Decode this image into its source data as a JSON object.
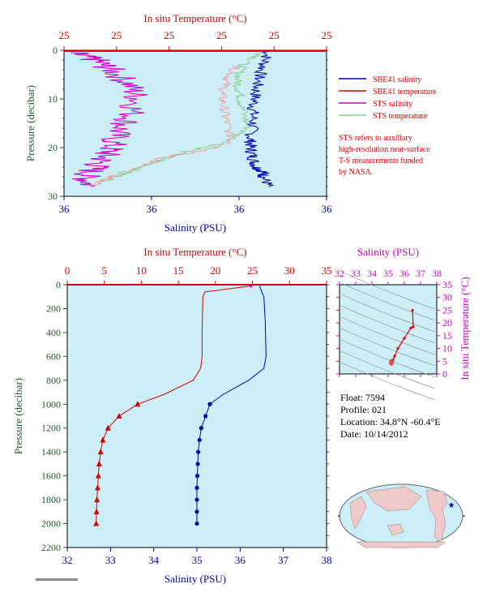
{
  "colors": {
    "plot_bg": "#cdeef7",
    "red": "#d40000",
    "green": "#1e5a28",
    "blue": "#0000b4",
    "magenta": "#cc00cc",
    "light_red": "#f0a0a0",
    "light_green": "#8ccf8c"
  },
  "top_panel": {
    "title": "In situ Temperature (°C)",
    "temp_ticks": [
      "25",
      "25",
      "25",
      "25",
      "25",
      "25"
    ],
    "pressure_label": "Pressure (decibar)",
    "pressure_ticks": [
      "0",
      "10",
      "20",
      "30"
    ],
    "salinity_ticks": [
      "36",
      "36",
      "36",
      "36"
    ],
    "salinity_label": "Salinity (PSU)",
    "legend": [
      {
        "label": "SBE41 salinity",
        "color": "#0000b4"
      },
      {
        "label": "SBE41 temperature",
        "color": "#d40000"
      },
      {
        "label": "STS salinity",
        "color": "#cc00cc"
      },
      {
        "label": "STS temperature",
        "color": "#8ccf8c"
      }
    ],
    "note": [
      "STS refers to auxiliary",
      "high-resolution near-surface",
      "T-S measurements funded",
      "by NASA."
    ]
  },
  "main_panel": {
    "title": "In situ Temperature (°C)",
    "temp_ticks": [
      "0",
      "5",
      "10",
      "15",
      "20",
      "25",
      "30",
      "35"
    ],
    "pressure_label": "Pressure (decibar)",
    "pressure_ticks": [
      "0",
      "200",
      "400",
      "600",
      "800",
      "1000",
      "1200",
      "1400",
      "1600",
      "1800",
      "2000",
      "2200"
    ],
    "salinity_ticks": [
      "32",
      "33",
      "34",
      "35",
      "36",
      "37",
      "38"
    ],
    "salinity_label": "Salinity (PSU)"
  },
  "ts_panel": {
    "title": "Salinity (PSU)",
    "salinity_ticks": [
      "32",
      "33",
      "34",
      "35",
      "36",
      "37",
      "38"
    ],
    "temp_ticks": [
      "0",
      "5",
      "10",
      "15",
      "20",
      "25",
      "30",
      "35"
    ],
    "temp_label": "In situ Temperature (°C)"
  },
  "info": {
    "float": "Float:  7594",
    "profile": "Profile:  021",
    "location": "Location:  34.8°N  -60.4°E",
    "date": "Date:  10/14/2012"
  },
  "chart_data": [
    {
      "type": "line",
      "title": "In situ Temperature (°C)",
      "xlabel": "Salinity (PSU)",
      "ylabel": "Pressure (decibar)",
      "ylim": [
        0,
        30
      ],
      "y_inverted": true,
      "series": [
        {
          "name": "SBE41 salinity",
          "color": "#0000b4",
          "x": [
            0.78,
            0.76,
            0.74,
            0.73,
            0.72,
            0.72,
            0.71,
            0.71,
            0.72,
            0.73,
            0.76,
            0.76,
            0.78
          ],
          "y": [
            0,
            3,
            6,
            9,
            12,
            15,
            18,
            20,
            22,
            24,
            25,
            26,
            28
          ]
        },
        {
          "name": "SBE41 temperature",
          "color": "#d40000",
          "x": [
            0,
            1.0
          ],
          "y": [
            0.1,
            0.1
          ]
        },
        {
          "name": "STS salinity",
          "color": "#cc00cc",
          "x": [
            0.03,
            0.12,
            0.18,
            0.25,
            0.28,
            0.25,
            0.2,
            0.18,
            0.15,
            0.12,
            0.08,
            0.1
          ],
          "y": [
            0.5,
            2,
            4,
            7,
            10,
            14,
            17,
            20,
            22,
            24,
            26,
            28
          ]
        },
        {
          "name": "STS temperature",
          "color": "#8ccf8c",
          "x": [
            0.76,
            0.68,
            0.66,
            0.67,
            0.68,
            0.7,
            0.62,
            0.45,
            0.35,
            0.25,
            0.15
          ],
          "y": [
            0.5,
            3,
            6,
            9,
            12,
            16,
            19,
            21,
            23,
            25,
            27
          ]
        },
        {
          "name": "STS temperature (light red)",
          "color": "#f0a0a0",
          "x": [
            0.66,
            0.62,
            0.6,
            0.61,
            0.62,
            0.64,
            0.55,
            0.38,
            0.28,
            0.18,
            0.1
          ],
          "y": [
            3,
            6,
            9,
            12,
            15,
            19,
            20.5,
            22,
            24,
            26,
            28
          ]
        }
      ]
    },
    {
      "type": "line",
      "title": "In situ Temperature (°C)",
      "xlabel": "Salinity (PSU)",
      "ylabel": "Pressure (decibar)",
      "xlim_temperature": [
        0,
        35
      ],
      "xlim_salinity": [
        32,
        38
      ],
      "ylim": [
        0,
        2200
      ],
      "y_inverted": true,
      "series": [
        {
          "name": "In situ Temperature",
          "color": "#d40000",
          "x": [
            24.8,
            18.6,
            18.3,
            18.2,
            18.2,
            18.0,
            17.0,
            13.0,
            9.5,
            7.0,
            5.5,
            4.8,
            4.5,
            4.3,
            4.2,
            4.1,
            4.0,
            3.95,
            3.9
          ],
          "y": [
            10,
            60,
            100,
            400,
            600,
            700,
            800,
            920,
            1000,
            1100,
            1200,
            1300,
            1400,
            1500,
            1600,
            1700,
            1800,
            1900,
            2000
          ]
        },
        {
          "name": "Salinity",
          "color": "#0000b4",
          "x": [
            36.45,
            36.5,
            36.55,
            36.58,
            36.6,
            36.55,
            36.2,
            35.6,
            35.3,
            35.2,
            35.1,
            35.06,
            35.03,
            35.02,
            35.01,
            35.0,
            35.0,
            35.0,
            35.0
          ],
          "y": [
            10,
            60,
            100,
            300,
            600,
            700,
            800,
            920,
            1000,
            1100,
            1200,
            1300,
            1400,
            1500,
            1600,
            1700,
            1800,
            1900,
            2000
          ]
        }
      ],
      "markers_temperature": {
        "x": [
          9.5,
          7.0,
          5.5,
          4.8,
          4.5,
          4.3,
          4.2,
          4.1,
          4.0,
          3.95,
          3.9
        ],
        "y": [
          1000,
          1100,
          1200,
          1300,
          1400,
          1500,
          1600,
          1700,
          1800,
          1900,
          2000
        ]
      },
      "markers_salinity": {
        "x": [
          35.3,
          35.2,
          35.1,
          35.06,
          35.03,
          35.02,
          35.01,
          35.0,
          35.0,
          35.0,
          35.0
        ],
        "y": [
          1000,
          1100,
          1200,
          1300,
          1400,
          1500,
          1600,
          1700,
          1800,
          1900,
          2000
        ]
      }
    },
    {
      "type": "scatter",
      "title": "Salinity (PSU)",
      "xlabel": "Salinity (PSU)",
      "ylabel": "In situ Temperature (°C)",
      "xlim": [
        32,
        38
      ],
      "ylim": [
        0,
        35
      ],
      "series": [
        {
          "name": "T-S",
          "color": "#d40000",
          "x": [
            36.5,
            36.55,
            36.4,
            36.0,
            35.6,
            35.4,
            35.3,
            35.25,
            35.2
          ],
          "y": [
            25,
            18.5,
            18,
            14,
            10,
            7,
            5.5,
            4.5,
            4
          ]
        }
      ]
    }
  ]
}
